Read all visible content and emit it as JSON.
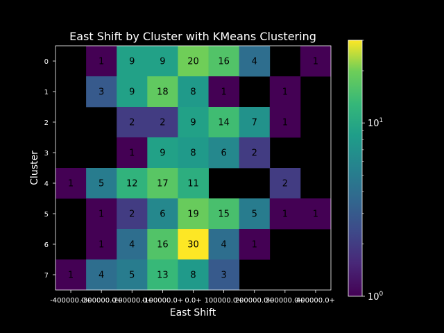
{
  "chart_data": {
    "type": "heatmap",
    "title": "East Shift by Cluster with KMeans Clustering",
    "xlabel": "East Shift",
    "ylabel": "Cluster",
    "x_tick_labels": [
      "-400000.0+",
      "-300000.0+",
      "-200000.0+",
      "-100000.0+",
      "0.0+",
      "100000.0+",
      "200000.0+",
      "300000.0+",
      "400000.0+"
    ],
    "y_tick_labels": [
      "0",
      "1",
      "2",
      "3",
      "4",
      "5",
      "6",
      "7"
    ],
    "colorscale": "viridis",
    "color_scale_type": "log",
    "color_range": [
      1,
      30
    ],
    "colorbar_tick_labels": [
      "10^0",
      "10^1"
    ],
    "background_color": "#000000",
    "values": [
      [
        null,
        1,
        9,
        9,
        20,
        16,
        4,
        null,
        1
      ],
      [
        null,
        3,
        9,
        18,
        8,
        1,
        null,
        1,
        null
      ],
      [
        null,
        null,
        2,
        2,
        9,
        14,
        7,
        1,
        null
      ],
      [
        null,
        null,
        1,
        9,
        8,
        6,
        2,
        null,
        null
      ],
      [
        1,
        5,
        12,
        17,
        11,
        null,
        null,
        2,
        null
      ],
      [
        null,
        1,
        2,
        6,
        19,
        15,
        5,
        1,
        1
      ],
      [
        null,
        1,
        4,
        16,
        30,
        4,
        1,
        null,
        null
      ],
      [
        1,
        4,
        5,
        13,
        8,
        3,
        null,
        null,
        null
      ]
    ]
  }
}
